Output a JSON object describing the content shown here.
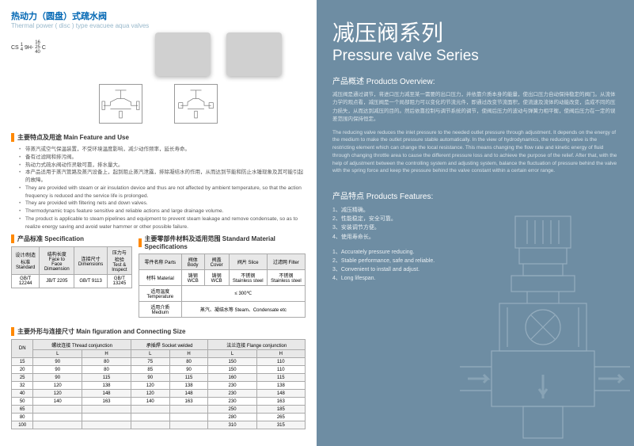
{
  "left": {
    "title_cn": "热动力（圆盘）式疏水阀",
    "title_en": "Thermal power ( disc ) type evacuee aqua valves",
    "model": {
      "prefix": "CS",
      "nums_top": "1",
      "nums_bot": "4",
      "mid": "9H-",
      "rng_top": "16",
      "rng_mid": "25",
      "rng_bot": "40",
      "suffix": "C"
    },
    "sec_feature": "主要特点及用途 Main Feature and  Use",
    "feature_bullets_cn": [
      "带蒸汽或空气保温装置，不受环境温度影响，减少动作频率，延长寿命。",
      "备有过滤网和排污阀。",
      "热动力式疏水阀动作灵敏可靠，排水量大。",
      "本产品适用于蒸汽管路及蒸汽设备上，起到阻止蒸汽泄露，排除凝结水的作用，从而达到节能和防止水锤现象及其可能引起的故障。"
    ],
    "feature_bullets_en": [
      "They are provided with steam or air insulation device and thus are not affected by ambient temperature, so that the action frequency is reduced and the service life is prolonged.",
      "They are provided with filtering nets and down valves.",
      "Thermodynamic traps feature sensitive and reliable actions and large drainage volume.",
      "The product is applicable to steam pipelines and equipment to prevent steam leakage and remove condensate, so as to realize energy saving and avoid water hammer or other possible failure."
    ],
    "sec_spec": "产品标准 Specification",
    "sec_mat": "主要零部件材料及适用范围 Standard Material Specifications",
    "spec_table": {
      "headers": [
        "设计/制造标准\nStandard",
        "结构长度\nFace to Face Dimaension",
        "连接尺寸\nDimensions",
        "压力与检验\nTest & Inspect"
      ],
      "row": [
        "GB/T 12244",
        "JB/T 2205",
        "GB/T 9113",
        "GB/T 13245"
      ]
    },
    "mat_table": {
      "hdr_parts": "零件名称 Parts",
      "hdr_body": "阀体\nBody",
      "hdr_cover": "阀盖 Cover",
      "hdr_disc": "阀片 Slice",
      "hdr_filter": "过滤网 Filter",
      "row_mat_lbl": "材料  Material",
      "row_mat": [
        "铸钢\nWCB",
        "铸钢\nWCB",
        "不锈钢\nStainless steel",
        "不锈钢\nStainless steel"
      ],
      "row_temp_lbl": "适用温度\nTemperature",
      "row_temp_val": "≤ 300℃",
      "row_med_lbl": "适用介质 Medium",
      "row_med_val": "蒸汽、凝结水等 Steam、Condensate etc"
    },
    "sec_dim": "主要外形与连接尺寸 Main figuration and Connecting Size",
    "dim_table": {
      "hdr_dn": "DN",
      "hdr_groups": [
        "螺纹连接   Thread conjunction",
        "承插焊   Socket welded",
        "法兰连接 Flange conjunction"
      ],
      "hdr_sub": "L",
      "hdr_sub2": "H",
      "rows": [
        [
          "15",
          "90",
          "80",
          "75",
          "80",
          "150",
          "110"
        ],
        [
          "20",
          "90",
          "80",
          "85",
          "90",
          "150",
          "110"
        ],
        [
          "25",
          "90",
          "115",
          "90",
          "115",
          "160",
          "115"
        ],
        [
          "32",
          "120",
          "138",
          "120",
          "138",
          "230",
          "138"
        ],
        [
          "40",
          "120",
          "148",
          "120",
          "148",
          "230",
          "148"
        ],
        [
          "50",
          "140",
          "163",
          "140",
          "163",
          "230",
          "163"
        ],
        [
          "65",
          "",
          "",
          "",
          "",
          "250",
          "185"
        ],
        [
          "80",
          "",
          "",
          "",
          "",
          "280",
          "265"
        ],
        [
          "100",
          "",
          "",
          "",
          "",
          "310",
          "315"
        ]
      ]
    }
  },
  "right": {
    "title_cn": "减压阀系列",
    "title_en": "Pressure valve Series",
    "sec_overview": "产品概述 Products Overview:",
    "overview_cn": "减压阀是通过调节，将进口压力减至某一需要的出口压力，并依靠介质本身的能量，使出口压力自动保持稳定的阀门。从流体力学的观点看，减压阀是一个局部阻力可以变化的节流元件，即通过改变节流面积，使流速及流体的动能改变，造成不同的压力损失，从而达到减压的目的。然后依靠控制与调节系统的调节，使阀后压力的波动与弹簧力相平衡，使阀后压力在一定的误差范围内保持恒定。",
    "overview_en": "The reducing valve reduces the inlet pressure to the needed outlet pressure through adjustment. It depends on the energy of the medium to make the outlet pressure stable automatically. In the view of hydrodynamics, the reducing valve is the restricting element which can change the local resistance. This means changing the flow rate and kinetic energy of fluid through changing throttle area to cause the different pressure loss and to achieve the purpose of the relief. After that, with the help of adjustment between the controlling system and adjusting system, balance the fluctuation of pressure behind the valve with the spring force and keep the pressure behind the valve constant within a certain error range.",
    "sec_features": "产品特点 Products Features:",
    "features_cn": [
      "1、减压精确。",
      "2、性能稳定，安全可靠。",
      "3、安装调节方便。",
      "4、使用寿命长。"
    ],
    "features_en": [
      "1、Accurately pressure reducing.",
      "2、Stable performance, safe and reliable.",
      "3、Convenient to install and adjust.",
      "4、Long lifespan."
    ]
  },
  "colors": {
    "orange": "#ff8800",
    "blue": "#0066b3",
    "lightblue": "#98b8cb",
    "rightbg": "#6e8da3",
    "diag": "#b5c8d5"
  }
}
